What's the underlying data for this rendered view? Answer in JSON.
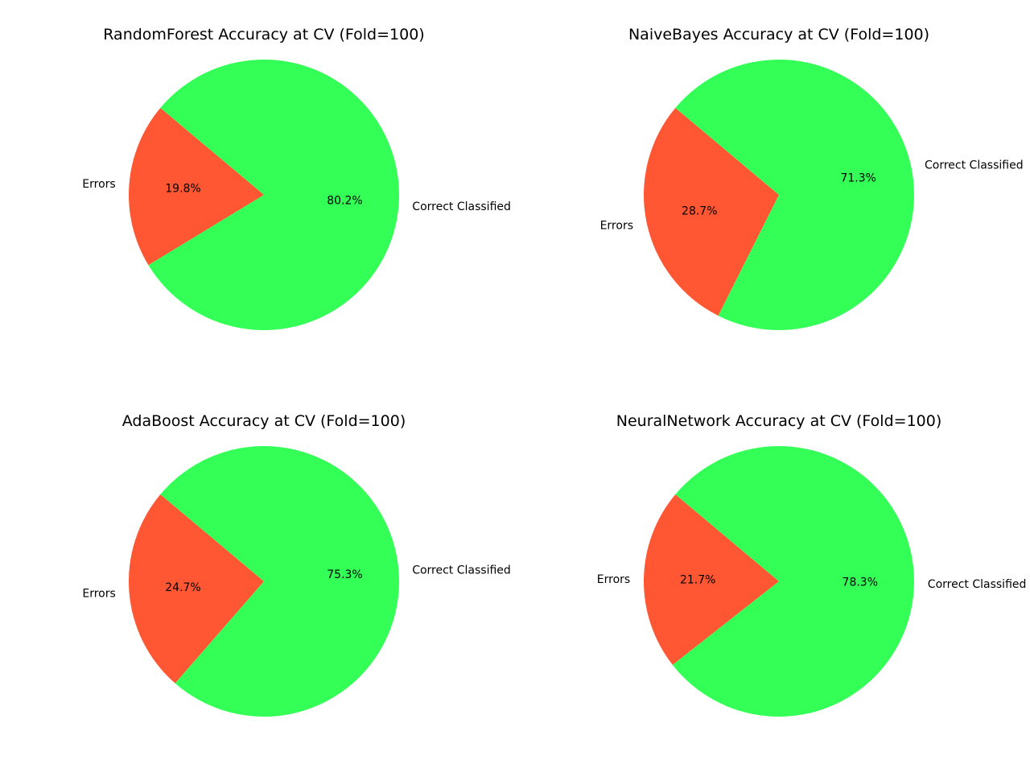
{
  "colors": {
    "errors": "#ff5733",
    "correct": "#33ff57"
  },
  "chart_data": [
    {
      "type": "pie",
      "title": "RandomForest Accuracy at CV (Fold=100)",
      "labels": [
        "Errors",
        "Correct Classified"
      ],
      "values": [
        19.8,
        80.2
      ],
      "value_labels": [
        "19.8%",
        "80.2%"
      ]
    },
    {
      "type": "pie",
      "title": "NaiveBayes Accuracy at CV (Fold=100)",
      "labels": [
        "Errors",
        "Correct Classified"
      ],
      "values": [
        28.7,
        71.3
      ],
      "value_labels": [
        "28.7%",
        "71.3%"
      ]
    },
    {
      "type": "pie",
      "title": "AdaBoost Accuracy at CV (Fold=100)",
      "labels": [
        "Errors",
        "Correct Classified"
      ],
      "values": [
        24.7,
        75.3
      ],
      "value_labels": [
        "24.7%",
        "75.3%"
      ]
    },
    {
      "type": "pie",
      "title": "NeuralNetwork Accuracy at CV (Fold=100)",
      "labels": [
        "Errors",
        "Correct Classified"
      ],
      "values": [
        21.7,
        78.3
      ],
      "value_labels": [
        "21.7%",
        "78.3%"
      ]
    }
  ]
}
